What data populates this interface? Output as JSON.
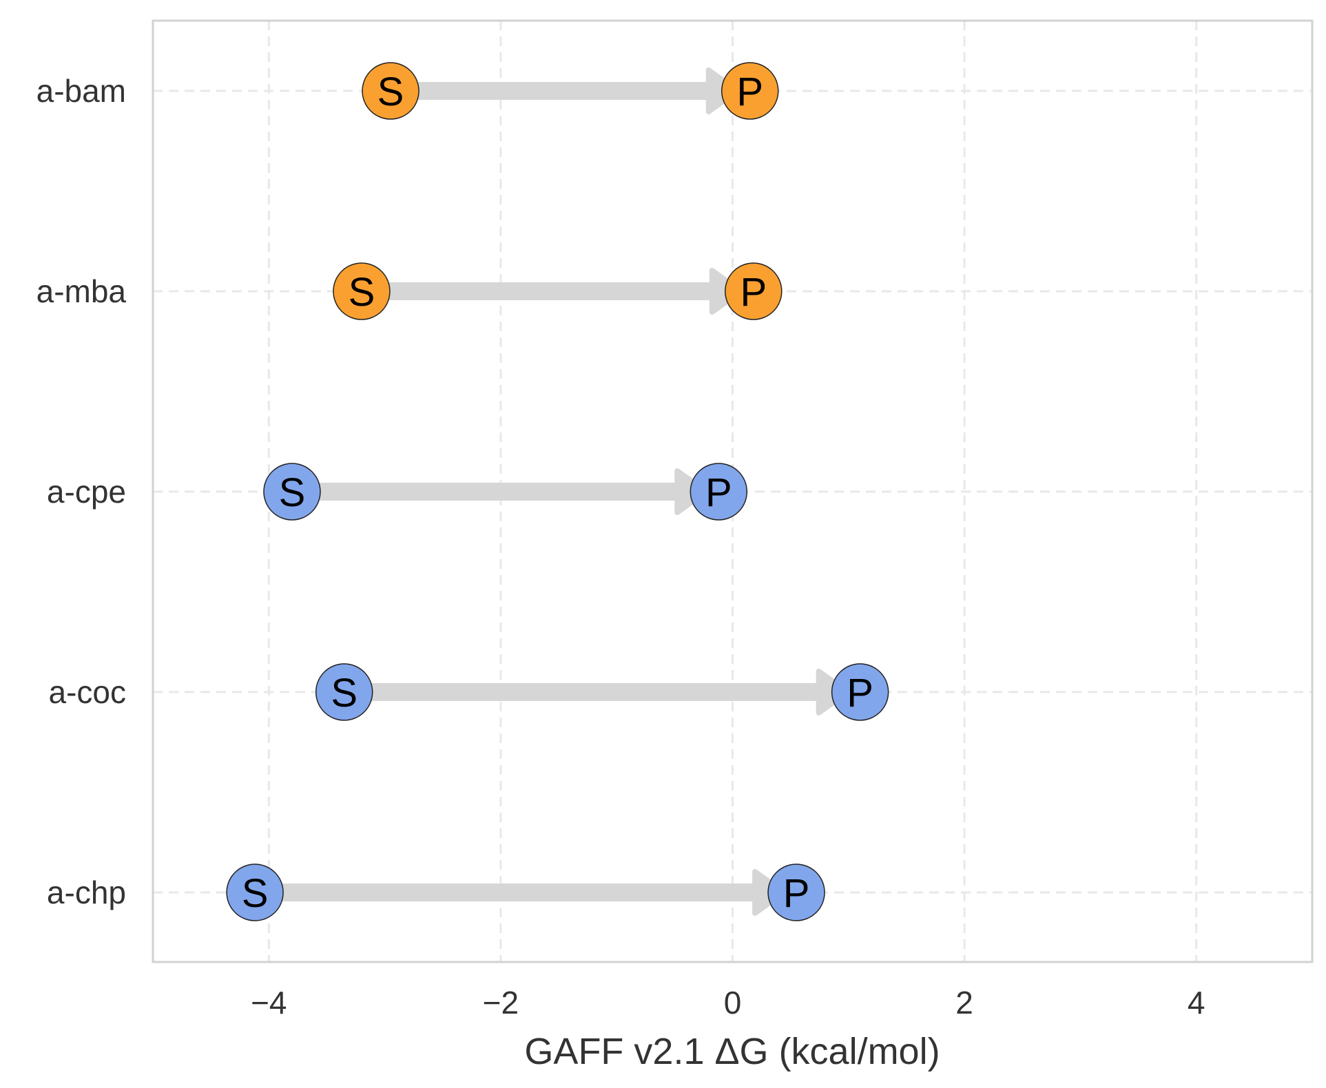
{
  "chart_data": {
    "type": "dumbbell-arrow",
    "title": "",
    "xlabel": "GAFF v2.1 ΔG (kcal/mol)",
    "ylabel": "",
    "xlim": [
      -5,
      5
    ],
    "xticks": [
      -4,
      -2,
      0,
      2,
      4
    ],
    "xtick_labels": [
      "−4",
      "−2",
      "0",
      "2",
      "4"
    ],
    "grid": true,
    "grid_style": "dashed",
    "categories": [
      "a-bam",
      "a-mba",
      "a-cpe",
      "a-coc",
      "a-chp"
    ],
    "start_label": "S",
    "end_label": "P",
    "rows": [
      {
        "name": "a-bam",
        "S": -2.95,
        "P": 0.15,
        "color": "#f9a030"
      },
      {
        "name": "a-mba",
        "S": -3.2,
        "P": 0.18,
        "color": "#f9a030"
      },
      {
        "name": "a-cpe",
        "S": -3.8,
        "P": -0.12,
        "color": "#82a6ec"
      },
      {
        "name": "a-coc",
        "S": -3.35,
        "P": 1.1,
        "color": "#82a6ec"
      },
      {
        "name": "a-chp",
        "S": -4.12,
        "P": 0.55,
        "color": "#82a6ec"
      }
    ],
    "arrow_color": "#d6d6d6"
  }
}
